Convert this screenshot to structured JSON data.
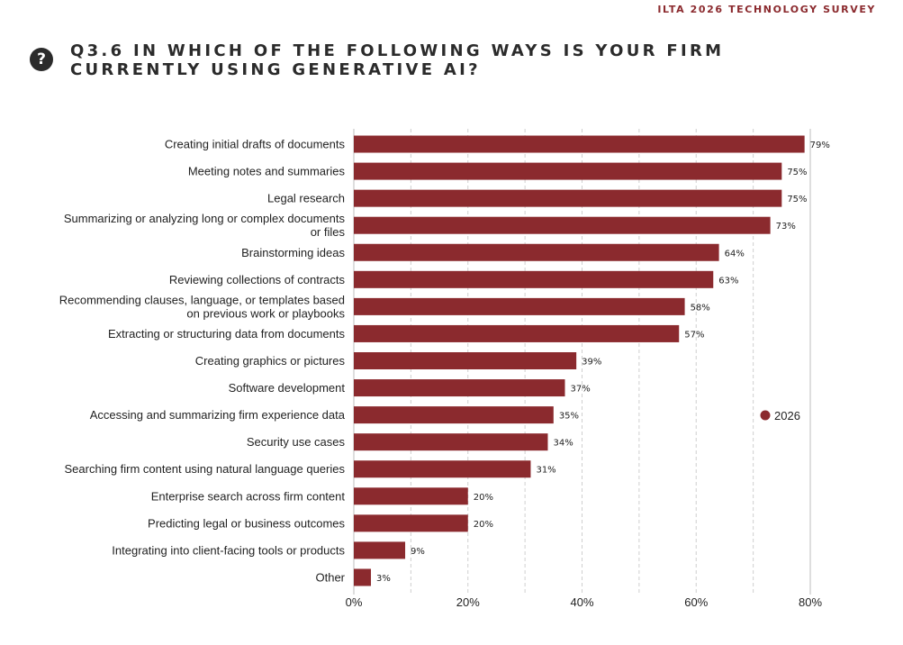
{
  "header": {
    "survey_label": "ILTA 2026 TECHNOLOGY SURVEY"
  },
  "question": {
    "badge": "?",
    "title": "Q3.6 In which of the following ways is your firm currently using generative AI?"
  },
  "colors": {
    "bar": "#8b2a2e",
    "grid": "#cfcfcf",
    "text": "#222222"
  },
  "chart_data": {
    "type": "bar",
    "orientation": "horizontal",
    "categories": [
      [
        "Creating initial drafts of documents"
      ],
      [
        "Meeting notes and summaries"
      ],
      [
        "Legal research"
      ],
      [
        "Summarizing or analyzing long or complex documents",
        "or files"
      ],
      [
        "Brainstorming ideas"
      ],
      [
        "Reviewing collections of contracts"
      ],
      [
        "Recommending clauses, language, or templates based",
        "on previous work or playbooks"
      ],
      [
        "Extracting or structuring data from documents"
      ],
      [
        "Creating graphics or pictures"
      ],
      [
        "Software development"
      ],
      [
        "Accessing and summarizing firm experience data"
      ],
      [
        "Security use cases"
      ],
      [
        "Searching firm content using natural language queries"
      ],
      [
        "Enterprise search across firm content"
      ],
      [
        "Predicting legal or business outcomes"
      ],
      [
        "Integrating into client-facing tools or products"
      ],
      [
        "Other"
      ]
    ],
    "series": [
      {
        "name": "2026",
        "values": [
          79,
          75,
          75,
          73,
          64,
          63,
          58,
          57,
          39,
          37,
          35,
          34,
          31,
          20,
          20,
          9,
          3
        ]
      }
    ],
    "value_labels": [
      "79%",
      "75%",
      "75%",
      "73%",
      "64%",
      "63%",
      "58%",
      "57%",
      "39%",
      "37%",
      "35%",
      "34%",
      "31%",
      "20%",
      "20%",
      "9%",
      "3%"
    ],
    "xlim": [
      0,
      80
    ],
    "xticks": [
      0,
      20,
      40,
      60,
      80
    ],
    "xtick_labels": [
      "0%",
      "20%",
      "40%",
      "60%",
      "80%"
    ],
    "grid": "vertical dashed",
    "legend_position": "right"
  }
}
